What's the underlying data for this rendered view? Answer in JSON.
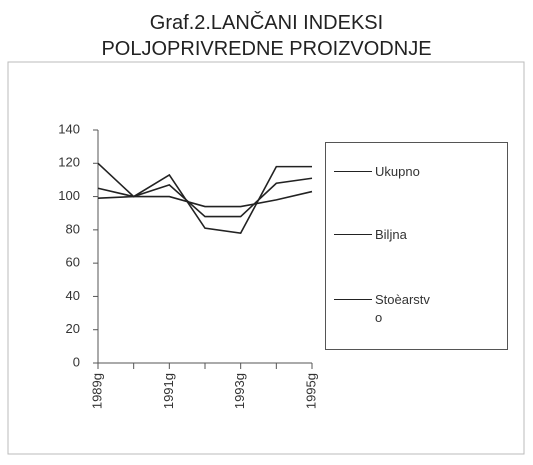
{
  "chart_data": {
    "type": "line",
    "title": [
      "Graf.2.LANČANI INDEKSI",
      "POLJOPRIVREDNE PROIZVODNJE"
    ],
    "categories": [
      "1989g",
      null,
      "1991g",
      null,
      "1993g",
      null,
      "1995g"
    ],
    "series": [
      {
        "name": "Ukupno",
        "color": "#222222",
        "values": [
          105,
          100,
          107,
          88,
          88,
          108,
          111
        ]
      },
      {
        "name": "Biljna",
        "color": "#222222",
        "values": [
          120,
          100,
          113,
          81,
          78,
          118,
          118
        ]
      },
      {
        "name": "Stoèarstvo",
        "color": "#222222",
        "values": [
          99,
          100,
          100,
          94,
          94,
          98,
          103
        ]
      }
    ],
    "ylim": [
      0,
      140
    ],
    "yticks": [
      0,
      20,
      40,
      60,
      80,
      100,
      120,
      140
    ],
    "grid": false,
    "legend": "right"
  }
}
